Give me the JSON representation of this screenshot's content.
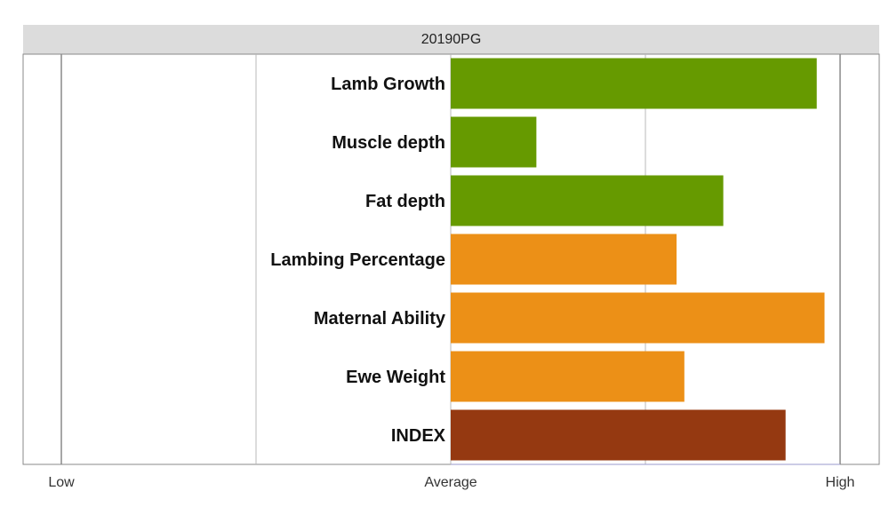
{
  "chart_data": {
    "type": "bar",
    "orientation": "horizontal",
    "title": "20190PG",
    "categories": [
      "Lamb Growth",
      "Muscle depth",
      "Fat depth",
      "Lambing Percentage",
      "Maternal Ability",
      "Ewe Weight",
      "INDEX"
    ],
    "values": [
      0.94,
      0.22,
      0.7,
      0.58,
      0.96,
      0.6,
      0.86
    ],
    "value_scale": "relative to Average: -1 = Low, 0 = Average, 1 = High",
    "xlim": [
      -1,
      1
    ],
    "tick_labels": [
      {
        "value": -1,
        "label": "Low"
      },
      {
        "value": 0,
        "label": "Average"
      },
      {
        "value": 1,
        "label": "High"
      }
    ],
    "colors": [
      "#669a00",
      "#669a00",
      "#669a00",
      "#ec9017",
      "#ec9017",
      "#ec9017",
      "#953911"
    ],
    "grid": true,
    "gridline_color": "#b9b9b9",
    "axis_color": "#888888"
  }
}
